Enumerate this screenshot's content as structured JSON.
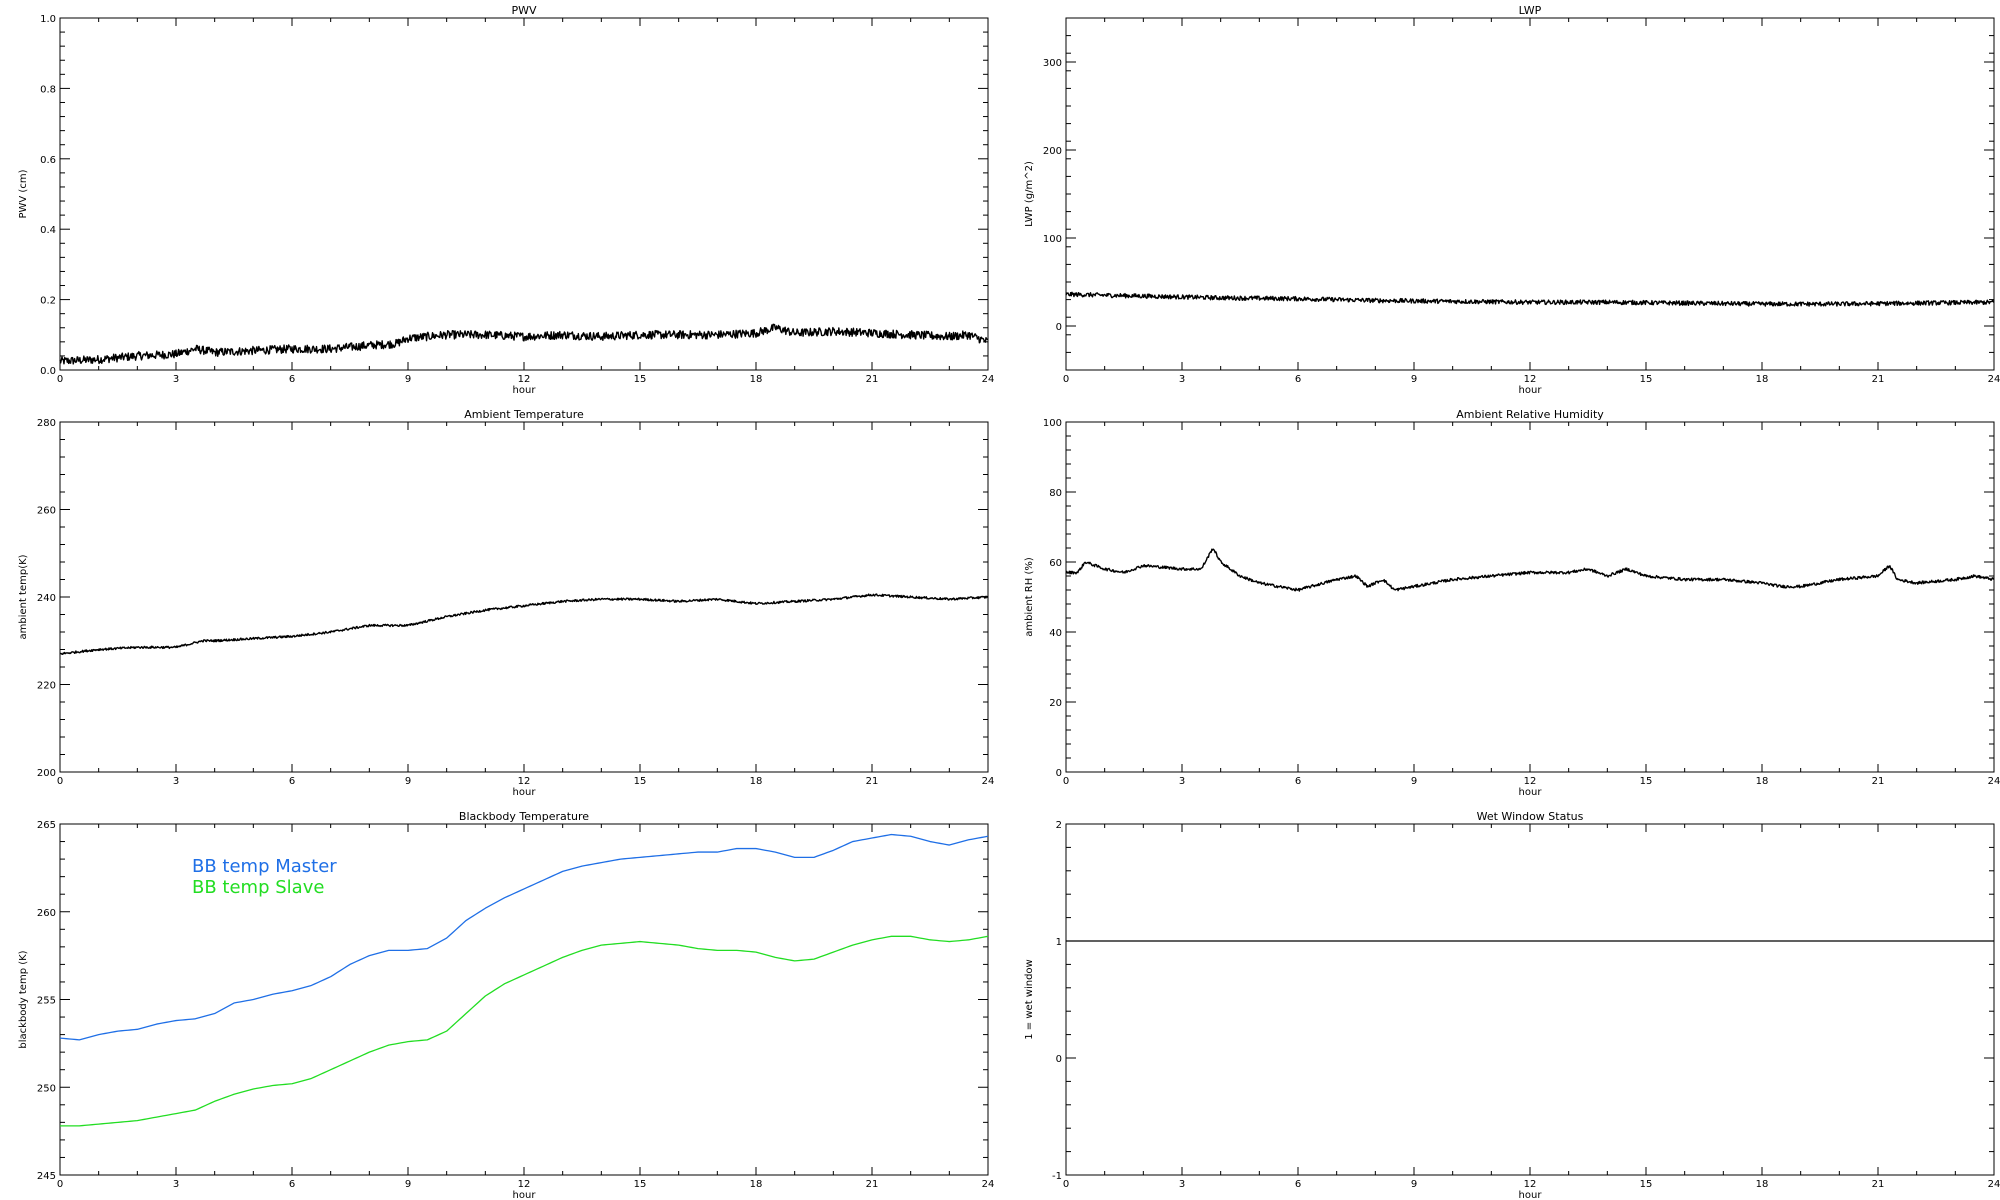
{
  "chart_data": [
    {
      "type": "line",
      "title": "PWV",
      "xlabel": "hour",
      "ylabel": "PWV (cm)",
      "xlim": [
        0,
        24
      ],
      "ylim": [
        0,
        1
      ],
      "x_ticks": [
        0,
        3,
        6,
        9,
        12,
        15,
        18,
        21,
        24
      ],
      "y_ticks": [
        0.0,
        0.2,
        0.4,
        0.6,
        0.8,
        1.0
      ],
      "y_tick_labels": [
        "0.0",
        "0.2",
        "0.4",
        "0.6",
        "0.8",
        "1.0"
      ],
      "noisy": true,
      "noise_amplitude": 0.012,
      "series": [
        {
          "color": "#000000",
          "x": [
            0,
            1,
            2,
            3,
            3.5,
            4,
            5,
            6,
            7,
            8,
            8.7,
            9,
            10,
            11,
            12,
            13,
            14,
            15,
            16,
            17,
            18,
            18.5,
            19,
            20,
            21,
            22,
            23,
            23.5,
            24
          ],
          "y": [
            0.025,
            0.03,
            0.04,
            0.045,
            0.06,
            0.05,
            0.055,
            0.06,
            0.06,
            0.07,
            0.075,
            0.09,
            0.1,
            0.1,
            0.095,
            0.1,
            0.095,
            0.1,
            0.1,
            0.1,
            0.105,
            0.12,
            0.105,
            0.11,
            0.105,
            0.1,
            0.095,
            0.1,
            0.08
          ]
        }
      ]
    },
    {
      "type": "line",
      "title": "LWP",
      "xlabel": "hour",
      "ylabel": "LWP (g/m^2)",
      "xlim": [
        0,
        24
      ],
      "ylim": [
        -50,
        350
      ],
      "x_ticks": [
        0,
        3,
        6,
        9,
        12,
        15,
        18,
        21,
        24
      ],
      "y_ticks": [
        0,
        100,
        200,
        300
      ],
      "y_tick_labels": [
        "0",
        "100",
        "200",
        "300"
      ],
      "noisy": true,
      "noise_amplitude": 2.5,
      "series": [
        {
          "color": "#000000",
          "x": [
            0,
            2,
            4,
            6,
            8,
            10,
            12,
            14,
            16,
            18,
            20,
            22,
            24
          ],
          "y": [
            36,
            34,
            32,
            31,
            29,
            28,
            27,
            27,
            26,
            25,
            25,
            26,
            27
          ]
        }
      ]
    },
    {
      "type": "line",
      "title": "Ambient Temperature",
      "xlabel": "hour",
      "ylabel": "ambient temp(K)",
      "xlim": [
        0,
        24
      ],
      "ylim": [
        200,
        280
      ],
      "x_ticks": [
        0,
        3,
        6,
        9,
        12,
        15,
        18,
        21,
        24
      ],
      "y_ticks": [
        200,
        220,
        240,
        260,
        280
      ],
      "y_tick_labels": [
        "200",
        "220",
        "240",
        "260",
        "280"
      ],
      "noisy": true,
      "noise_amplitude": 0.25,
      "series": [
        {
          "color": "#000000",
          "x": [
            0,
            1,
            2,
            3,
            3.7,
            4,
            5,
            6,
            7,
            8,
            9,
            10,
            11,
            12,
            13,
            14,
            15,
            16,
            17,
            18,
            19,
            20,
            21,
            22,
            23,
            24
          ],
          "y": [
            227,
            228,
            228.5,
            228.5,
            230,
            230,
            230.5,
            231,
            232,
            233.5,
            233.5,
            235.5,
            237,
            238,
            239,
            239.5,
            239.5,
            239,
            239.5,
            238.5,
            239,
            239.5,
            240.5,
            240,
            239.5,
            240
          ]
        }
      ]
    },
    {
      "type": "line",
      "title": "Ambient Relative Humidity",
      "xlabel": "hour",
      "ylabel": "ambient RH (%)",
      "xlim": [
        0,
        24
      ],
      "ylim": [
        0,
        100
      ],
      "x_ticks": [
        0,
        3,
        6,
        9,
        12,
        15,
        18,
        21,
        24
      ],
      "y_ticks": [
        0,
        20,
        40,
        60,
        80,
        100
      ],
      "y_tick_labels": [
        "0",
        "20",
        "40",
        "60",
        "80",
        "100"
      ],
      "noisy": true,
      "noise_amplitude": 0.4,
      "series": [
        {
          "color": "#000000",
          "x": [
            0,
            0.3,
            0.5,
            1,
            1.5,
            2,
            3,
            3.5,
            3.8,
            4,
            4.5,
            5,
            6,
            7,
            7.5,
            7.8,
            8.2,
            8.5,
            9,
            10,
            11,
            12,
            13,
            13.5,
            14,
            14.5,
            15,
            16,
            17,
            18,
            18.5,
            19,
            20,
            21,
            21.3,
            21.5,
            22,
            23,
            23.5,
            24
          ],
          "y": [
            57,
            57,
            60,
            58,
            57,
            59,
            58,
            58,
            64,
            60,
            56,
            54,
            52,
            55,
            56,
            53,
            55,
            52,
            53,
            55,
            56,
            57,
            57,
            58,
            56,
            58,
            56,
            55,
            55,
            54,
            53,
            53,
            55,
            56,
            59,
            55,
            54,
            55,
            56,
            55
          ]
        }
      ]
    },
    {
      "type": "line",
      "title": "Blackbody Temperature",
      "xlabel": "hour",
      "ylabel": "blackbody temp (K)",
      "xlim": [
        0,
        24
      ],
      "ylim": [
        245,
        265
      ],
      "x_ticks": [
        0,
        3,
        6,
        9,
        12,
        15,
        18,
        21,
        24
      ],
      "y_ticks": [
        245,
        250,
        255,
        260,
        265
      ],
      "y_tick_labels": [
        "245",
        "250",
        "255",
        "260",
        "265"
      ],
      "noisy": false,
      "noise_amplitude": 0,
      "legend": "top-left",
      "series": [
        {
          "name": "BB temp Master",
          "color": "#1f6fe6",
          "x": [
            0,
            0.5,
            1,
            1.5,
            2,
            2.5,
            3,
            3.5,
            4,
            4.5,
            5,
            5.5,
            6,
            6.5,
            7,
            7.5,
            8,
            8.5,
            9,
            9.5,
            10,
            10.5,
            11,
            11.5,
            12,
            12.5,
            13,
            13.5,
            14,
            14.5,
            15,
            15.5,
            16,
            16.5,
            17,
            17.5,
            18,
            18.5,
            19,
            19.5,
            20,
            20.5,
            21,
            21.5,
            22,
            22.5,
            23,
            23.5,
            24
          ],
          "y": [
            252.8,
            252.7,
            253.0,
            253.2,
            253.3,
            253.6,
            253.8,
            253.9,
            254.2,
            254.8,
            255.0,
            255.3,
            255.5,
            255.8,
            256.3,
            257.0,
            257.5,
            257.8,
            257.8,
            257.9,
            258.5,
            259.5,
            260.2,
            260.8,
            261.3,
            261.8,
            262.3,
            262.6,
            262.8,
            263.0,
            263.1,
            263.2,
            263.3,
            263.4,
            263.4,
            263.6,
            263.6,
            263.4,
            263.1,
            263.1,
            263.5,
            264.0,
            264.2,
            264.4,
            264.3,
            264.0,
            263.8,
            264.1,
            264.3
          ]
        },
        {
          "name": "BB temp Slave",
          "color": "#22dd22",
          "x": [
            0,
            0.5,
            1,
            1.5,
            2,
            2.5,
            3,
            3.5,
            4,
            4.5,
            5,
            5.5,
            6,
            6.5,
            7,
            7.5,
            8,
            8.5,
            9,
            9.5,
            10,
            10.5,
            11,
            11.5,
            12,
            12.5,
            13,
            13.5,
            14,
            14.5,
            15,
            15.5,
            16,
            16.5,
            17,
            17.5,
            18,
            18.5,
            19,
            19.5,
            20,
            20.5,
            21,
            21.5,
            22,
            22.5,
            23,
            23.5,
            24
          ],
          "y": [
            247.8,
            247.8,
            247.9,
            248.0,
            248.1,
            248.3,
            248.5,
            248.7,
            249.2,
            249.6,
            249.9,
            250.1,
            250.2,
            250.5,
            251.0,
            251.5,
            252.0,
            252.4,
            252.6,
            252.7,
            253.2,
            254.2,
            255.2,
            255.9,
            256.4,
            256.9,
            257.4,
            257.8,
            258.1,
            258.2,
            258.3,
            258.2,
            258.1,
            257.9,
            257.8,
            257.8,
            257.7,
            257.4,
            257.2,
            257.3,
            257.7,
            258.1,
            258.4,
            258.6,
            258.6,
            258.4,
            258.3,
            258.4,
            258.6
          ]
        }
      ]
    },
    {
      "type": "line",
      "title": "Wet Window Status",
      "xlabel": "hour",
      "ylabel": "1 = wet window",
      "xlim": [
        0,
        24
      ],
      "ylim": [
        -1,
        2
      ],
      "x_ticks": [
        0,
        3,
        6,
        9,
        12,
        15,
        18,
        21,
        24
      ],
      "y_ticks": [
        -1,
        0,
        1,
        2
      ],
      "y_tick_labels": [
        "-1",
        "0",
        "1",
        "2"
      ],
      "noisy": false,
      "noise_amplitude": 0,
      "series": [
        {
          "color": "#000000",
          "x": [
            0,
            24
          ],
          "y": [
            1,
            1
          ]
        }
      ]
    }
  ]
}
